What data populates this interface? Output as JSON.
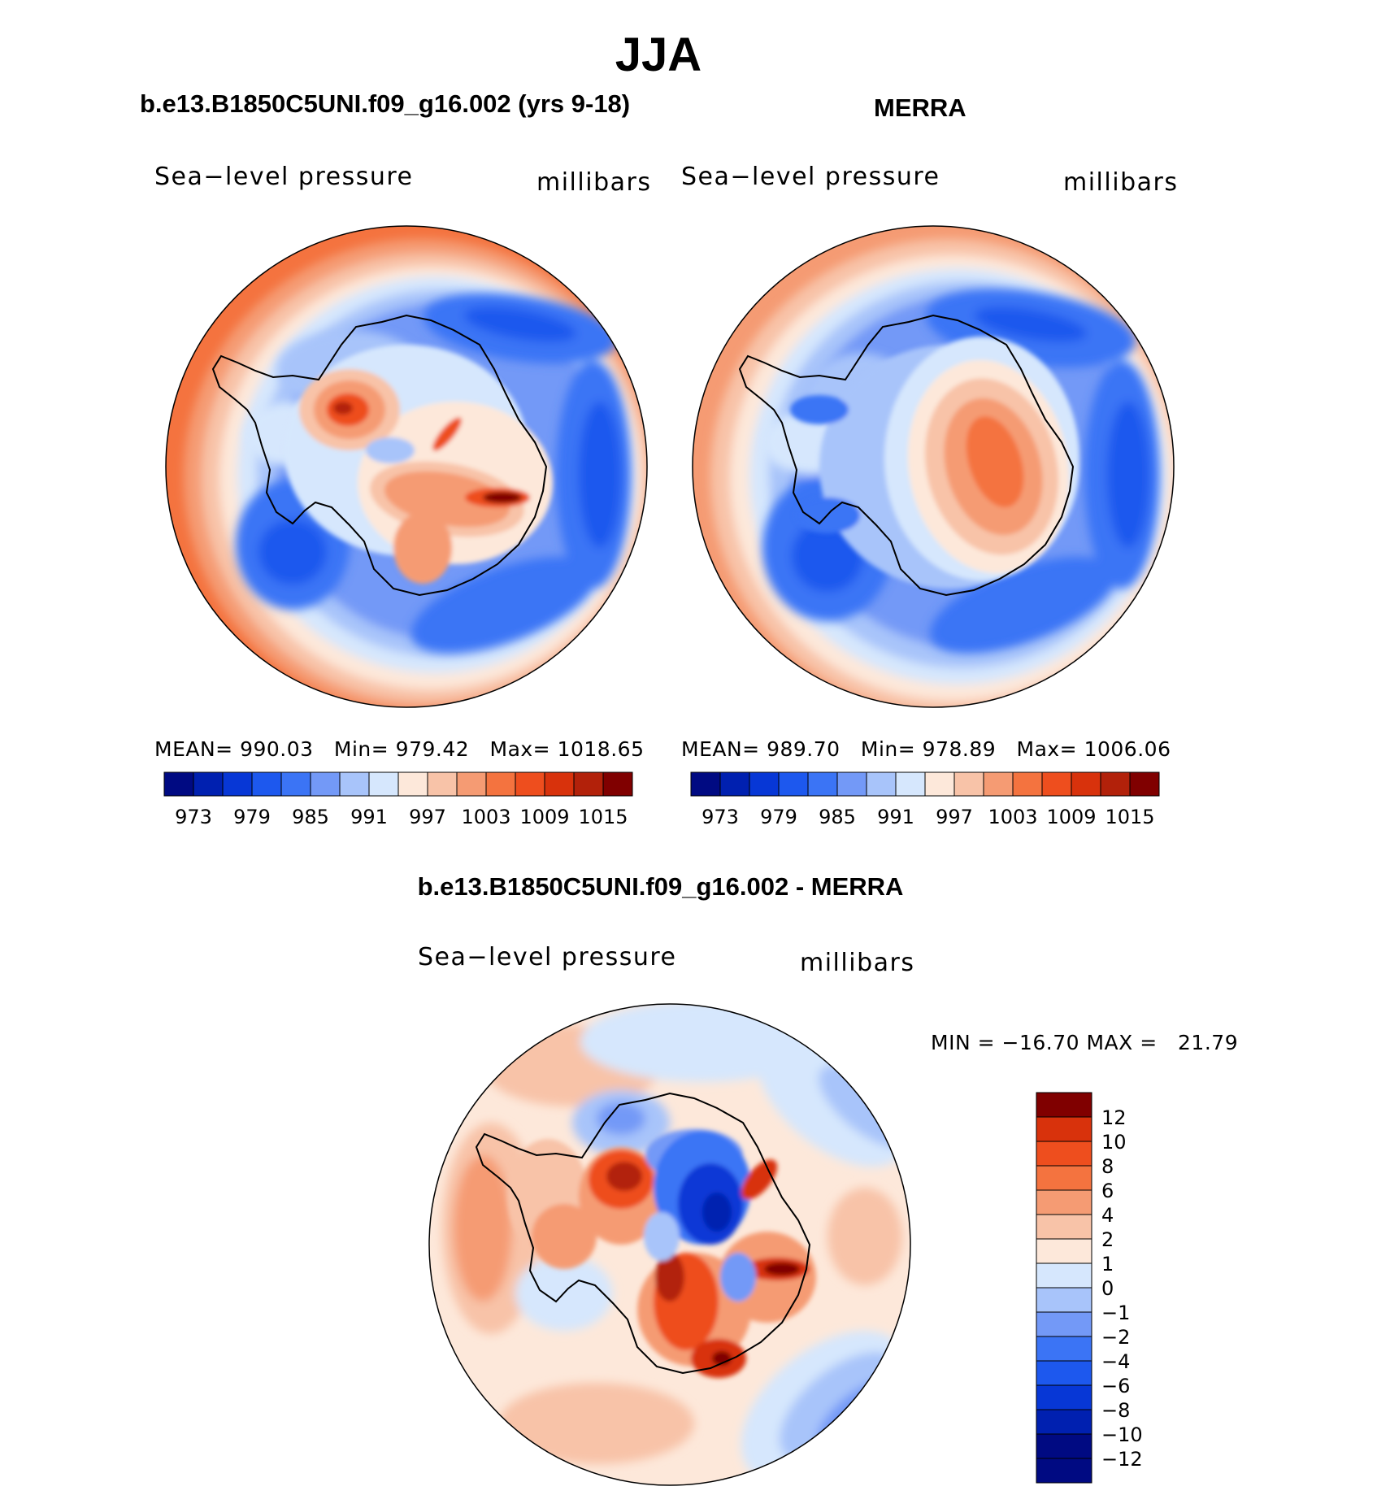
{
  "season_title": "JJA",
  "colors": {
    "abs_levels": [
      "#000a82",
      "#0020b0",
      "#0737d6",
      "#1d58ee",
      "#3b74f5",
      "#7399f7",
      "#a8c4fa",
      "#d6e7fd",
      "#fde8da",
      "#f8c3a8",
      "#f59b73",
      "#f4733f",
      "#ee4e1e",
      "#d8320c",
      "#b2210a",
      "#800000"
    ],
    "diff_levels": [
      "#000a82",
      "#0020b0",
      "#0737d6",
      "#1d58ee",
      "#3b74f5",
      "#7399f7",
      "#a8c4fa",
      "#d6e7fd",
      "#fde8da",
      "#f8c3a8",
      "#f59b73",
      "#f4733f",
      "#ee4e1e",
      "#d8320c",
      "#800000"
    ]
  },
  "chart_data": [
    {
      "type": "heatmap",
      "title": "b.e13.B1850C5UNI.f09_g16.002 (yrs 9-18)",
      "variable_label": "Sea−level pressure",
      "units_label": "millibars",
      "stats": {
        "mean_label": "MEAN=",
        "mean": "990.03",
        "min_label": "Min=",
        "min": "979.42",
        "max_label": "Max=",
        "max": "1018.65"
      },
      "contour_levels": [
        973,
        976,
        979,
        982,
        985,
        988,
        991,
        994,
        997,
        1000,
        1003,
        1006,
        1009,
        1012,
        1015
      ],
      "colorbar_tick_labels": [
        "973",
        "979",
        "985",
        "991",
        "997",
        "1003",
        "1009",
        "1015"
      ],
      "projection": "south-polar-stereographic"
    },
    {
      "type": "heatmap",
      "title": "MERRA",
      "variable_label": "Sea−level pressure",
      "units_label": "millibars",
      "stats": {
        "mean_label": "MEAN=",
        "mean": "989.70",
        "min_label": "Min=",
        "min": "978.89",
        "max_label": "Max=",
        "max": "1006.06"
      },
      "contour_levels": [
        973,
        976,
        979,
        982,
        985,
        988,
        991,
        994,
        997,
        1000,
        1003,
        1006,
        1009,
        1012,
        1015
      ],
      "colorbar_tick_labels": [
        "973",
        "979",
        "985",
        "991",
        "997",
        "1003",
        "1009",
        "1015"
      ],
      "projection": "south-polar-stereographic"
    },
    {
      "type": "heatmap",
      "title": "b.e13.B1850C5UNI.f09_g16.002 - MERRA",
      "variable_label": "Sea−level pressure",
      "units_label": "millibars",
      "stats": {
        "min_label": "MIN =",
        "min": "−16.70",
        "max_label": "MAX =",
        "max": "21.79"
      },
      "contour_levels": [
        -12,
        -10,
        -8,
        -6,
        -4,
        -2,
        -1,
        0,
        1,
        2,
        4,
        6,
        8,
        10,
        12
      ],
      "colorbar_tick_labels": [
        "12",
        "10",
        "8",
        "6",
        "4",
        "2",
        "1",
        "0",
        "−1",
        "−2",
        "−4",
        "−6",
        "−8",
        "−10",
        "−12"
      ],
      "projection": "south-polar-stereographic"
    }
  ]
}
